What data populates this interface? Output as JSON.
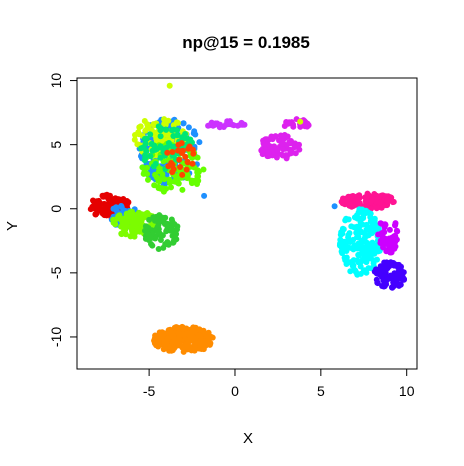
{
  "chart_data": {
    "type": "scatter",
    "title": "np@15 = 0.1985",
    "xlabel": "X",
    "ylabel": "Y",
    "xlim": [
      -9.2,
      10.6
    ],
    "ylim": [
      -12.5,
      10.2
    ],
    "x_ticks": [
      -5,
      0,
      5,
      10
    ],
    "y_ticks": [
      -10,
      -5,
      0,
      5,
      10
    ],
    "grid": false,
    "legend": "none",
    "clusters": [
      {
        "color": "#1e90ff",
        "cx": -3.8,
        "cy": 4.5,
        "rx": 1.8,
        "ry": 2.6,
        "n": 160
      },
      {
        "color": "#ccff00",
        "cx": -4.3,
        "cy": 5.6,
        "rx": 1.6,
        "ry": 1.6,
        "n": 90
      },
      {
        "color": "#66ff00",
        "cx": -3.6,
        "cy": 3.2,
        "rx": 1.8,
        "ry": 2.0,
        "n": 110
      },
      {
        "color": "#00e676",
        "cx": -4.0,
        "cy": 4.8,
        "rx": 1.6,
        "ry": 1.8,
        "n": 60
      },
      {
        "color": "#ff4500",
        "cx": -3.2,
        "cy": 4.0,
        "rx": 0.9,
        "ry": 1.4,
        "n": 25
      },
      {
        "color": "#cc33ff",
        "cx": -0.6,
        "cy": 6.6,
        "rx": 1.2,
        "ry": 0.25,
        "n": 25
      },
      {
        "color": "#dd22ee",
        "cx": 2.6,
        "cy": 4.8,
        "rx": 1.2,
        "ry": 1.0,
        "n": 80
      },
      {
        "color": "#dd22ee",
        "cx": 3.6,
        "cy": 6.6,
        "rx": 0.8,
        "ry": 0.4,
        "n": 30
      },
      {
        "color": "#e50000",
        "cx": -7.3,
        "cy": 0.2,
        "rx": 1.2,
        "ry": 0.9,
        "n": 110
      },
      {
        "color": "#1e90ff",
        "cx": -6.4,
        "cy": -0.6,
        "rx": 1.0,
        "ry": 0.9,
        "n": 50
      },
      {
        "color": "#7cfc00",
        "cx": -5.8,
        "cy": -1.2,
        "rx": 1.4,
        "ry": 1.0,
        "n": 120
      },
      {
        "color": "#32cd32",
        "cx": -4.3,
        "cy": -1.8,
        "rx": 1.0,
        "ry": 1.4,
        "n": 80
      },
      {
        "color": "#ff1493",
        "cx": 7.8,
        "cy": 0.6,
        "rx": 1.6,
        "ry": 0.6,
        "n": 120
      },
      {
        "color": "#00ffff",
        "cx": 7.3,
        "cy": -2.6,
        "rx": 1.2,
        "ry": 2.6,
        "n": 160
      },
      {
        "color": "#cc00ff",
        "cx": 8.9,
        "cy": -2.0,
        "rx": 0.6,
        "ry": 1.6,
        "n": 50
      },
      {
        "color": "#4400ff",
        "cx": 9.0,
        "cy": -5.2,
        "rx": 0.9,
        "ry": 1.1,
        "n": 100
      },
      {
        "color": "#ff8c00",
        "cx": -3.0,
        "cy": -10.2,
        "rx": 1.8,
        "ry": 1.0,
        "n": 200
      }
    ],
    "outliers": [
      {
        "x": -3.8,
        "y": 9.6,
        "color": "#ccff00"
      },
      {
        "x": 3.8,
        "y": 6.8,
        "color": "#ccff00"
      },
      {
        "x": -1.8,
        "y": 1.0,
        "color": "#1e90ff"
      },
      {
        "x": 5.8,
        "y": 0.2,
        "color": "#1e90ff"
      }
    ]
  }
}
